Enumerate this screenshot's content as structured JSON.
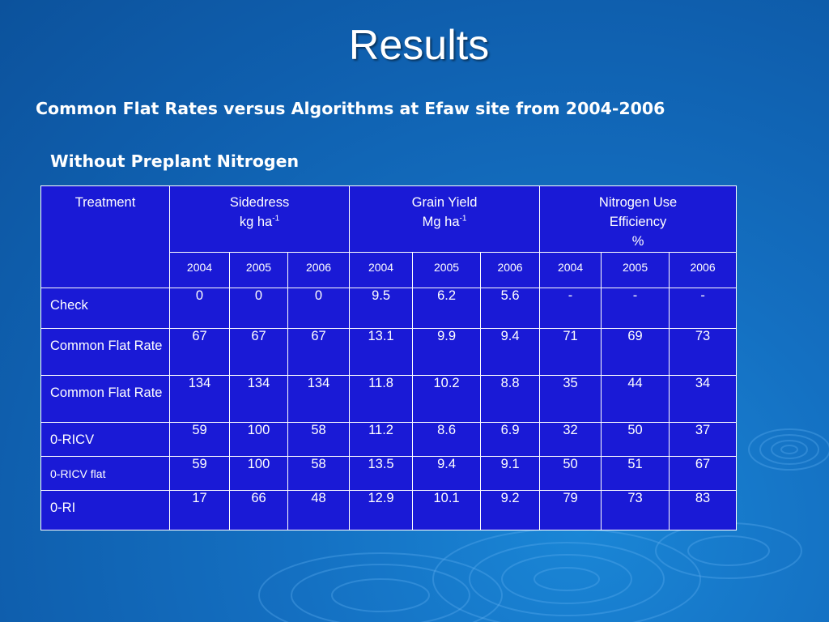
{
  "slide": {
    "title": "Results",
    "subtitle": "Common Flat Rates versus Algorithms at Efaw site from 2004-2006",
    "section": "Without Preplant Nitrogen"
  },
  "table": {
    "treatment_header": "Treatment",
    "groups": [
      {
        "line1": "Sidedress",
        "line2": "kg ha",
        "sup": "-1",
        "line3": ""
      },
      {
        "line1": "Grain Yield",
        "line2": "Mg ha",
        "sup": "-1",
        "line3": ""
      },
      {
        "line1": "Nitrogen Use",
        "line2": "Efficiency",
        "sup": "",
        "line3": "%"
      }
    ],
    "years": [
      "2004",
      "2005",
      "2006",
      "2004",
      "2005",
      "2006",
      "2004",
      "2005",
      "2006"
    ],
    "rows": [
      {
        "label": "Check",
        "values": [
          "0",
          "0",
          "0",
          "9.5",
          "6.2",
          "5.6",
          "-",
          "-",
          "-"
        ]
      },
      {
        "label": "Common Flat Rate",
        "values": [
          "67",
          "67",
          "67",
          "13.1",
          "9.9",
          "9.4",
          "71",
          "69",
          "73"
        ]
      },
      {
        "label": "Common Flat Rate",
        "values": [
          "134",
          "134",
          "134",
          "11.8",
          "10.2",
          "8.8",
          "35",
          "44",
          "34"
        ]
      },
      {
        "label": "0-RICV",
        "values": [
          "59",
          "100",
          "58",
          "11.2",
          "8.6",
          "6.9",
          "32",
          "50",
          "37"
        ]
      },
      {
        "label": "0-RICV flat",
        "values": [
          "59",
          "100",
          "58",
          "13.5",
          "9.4",
          "9.1",
          "50",
          "51",
          "67"
        ]
      },
      {
        "label": "0-RI",
        "values": [
          "17",
          "66",
          "48",
          "12.9",
          "10.1",
          "9.2",
          "79",
          "73",
          "83"
        ]
      }
    ]
  },
  "colors": {
    "background": "#1470c2",
    "table_fill": "#1a1ad6",
    "text": "#ffffff"
  }
}
